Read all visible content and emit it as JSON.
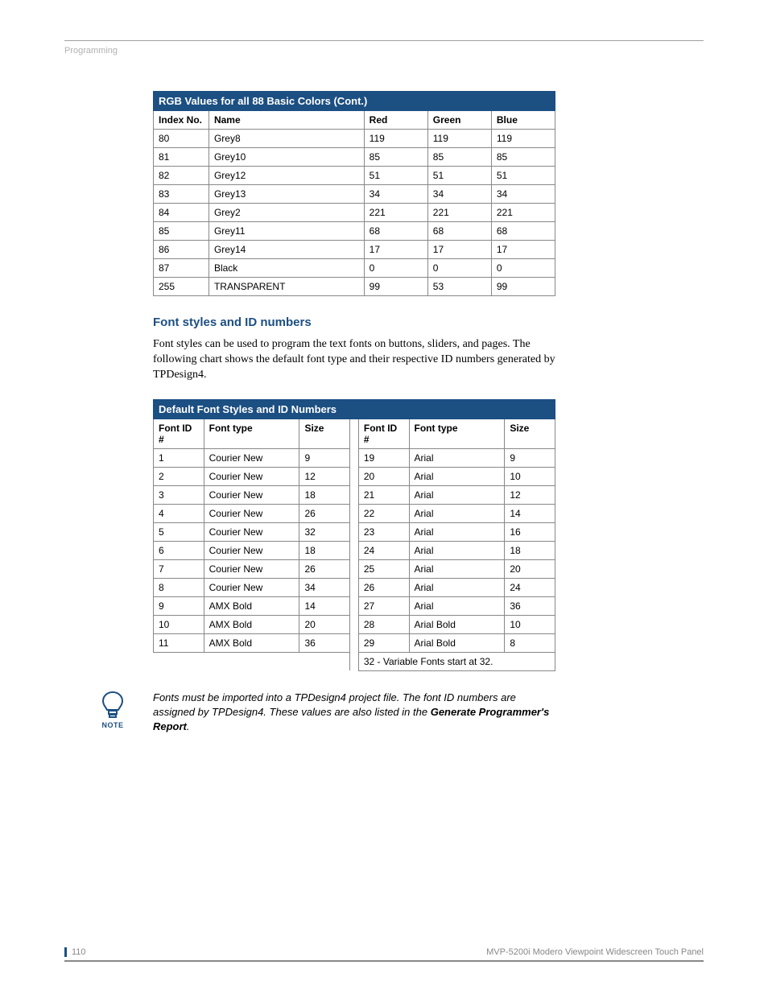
{
  "breadcrumb": "Programming",
  "table1": {
    "title": "RGB Values for all 88 Basic Colors (Cont.)",
    "headers": [
      "Index No.",
      "Name",
      "Red",
      "Green",
      "Blue"
    ],
    "rows": [
      [
        "80",
        "Grey8",
        "119",
        "119",
        "119"
      ],
      [
        "81",
        "Grey10",
        "85",
        "85",
        "85"
      ],
      [
        "82",
        "Grey12",
        "51",
        "51",
        "51"
      ],
      [
        "83",
        "Grey13",
        "34",
        "34",
        "34"
      ],
      [
        "84",
        "Grey2",
        "221",
        "221",
        "221"
      ],
      [
        "85",
        "Grey11",
        "68",
        "68",
        "68"
      ],
      [
        "86",
        "Grey14",
        "17",
        "17",
        "17"
      ],
      [
        "87",
        "Black",
        "0",
        "0",
        "0"
      ],
      [
        "255",
        "TRANSPARENT",
        "99",
        "53",
        "99"
      ]
    ]
  },
  "section_heading": "Font styles and ID numbers",
  "section_body": "Font styles can be used to program the text fonts on buttons, sliders, and pages. The following chart shows the default font type and their respective ID numbers generated by TPDesign4.",
  "table2": {
    "title": "Default Font Styles and ID Numbers",
    "headers_left": [
      "Font ID #",
      "Font type",
      "Size"
    ],
    "headers_right": [
      "Font ID #",
      "Font type",
      "Size"
    ],
    "rows": [
      [
        [
          "1",
          "Courier New",
          "9"
        ],
        [
          "19",
          "Arial",
          "9"
        ]
      ],
      [
        [
          "2",
          "Courier New",
          "12"
        ],
        [
          "20",
          "Arial",
          "10"
        ]
      ],
      [
        [
          "3",
          "Courier New",
          "18"
        ],
        [
          "21",
          "Arial",
          "12"
        ]
      ],
      [
        [
          "4",
          "Courier New",
          "26"
        ],
        [
          "22",
          "Arial",
          "14"
        ]
      ],
      [
        [
          "5",
          "Courier New",
          "32"
        ],
        [
          "23",
          "Arial",
          "16"
        ]
      ],
      [
        [
          "6",
          "Courier New",
          "18"
        ],
        [
          "24",
          "Arial",
          "18"
        ]
      ],
      [
        [
          "7",
          "Courier New",
          "26"
        ],
        [
          "25",
          "Arial",
          "20"
        ]
      ],
      [
        [
          "8",
          "Courier New",
          "34"
        ],
        [
          "26",
          "Arial",
          "24"
        ]
      ],
      [
        [
          "9",
          "AMX Bold",
          "14"
        ],
        [
          "27",
          "Arial",
          "36"
        ]
      ],
      [
        [
          "10",
          "AMX Bold",
          "20"
        ],
        [
          "28",
          "Arial Bold",
          "10"
        ]
      ],
      [
        [
          "11",
          "AMX Bold",
          "36"
        ],
        [
          "29",
          "Arial Bold",
          "8"
        ]
      ]
    ],
    "footer_right": "32 - Variable Fonts start at 32."
  },
  "note": {
    "label": "NOTE",
    "text_prefix": "Fonts must be imported into a TPDesign4 project file. The font ID numbers are assigned by TPDesign4. These values are also listed in the ",
    "text_bold": "Generate Programmer's Report",
    "text_suffix": "."
  },
  "footer": {
    "page": "110",
    "title": "MVP-5200i Modero Viewpoint Widescreen Touch Panel"
  },
  "colors": {
    "brand": "#1c4f82",
    "rule": "#a0a0a0",
    "muted": "#b0b0b0"
  }
}
